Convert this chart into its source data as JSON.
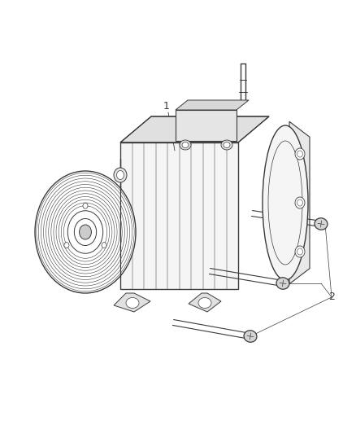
{
  "bg_color": "#ffffff",
  "line_color": "#3a3a3a",
  "fig_width": 4.38,
  "fig_height": 5.33,
  "dpi": 100,
  "label_1": "1",
  "label_2": "2",
  "font_size_labels": 9,
  "bolt_color": "#555555",
  "compressor_fill": "#f5f5f5",
  "pulley_fill": "#efefef"
}
